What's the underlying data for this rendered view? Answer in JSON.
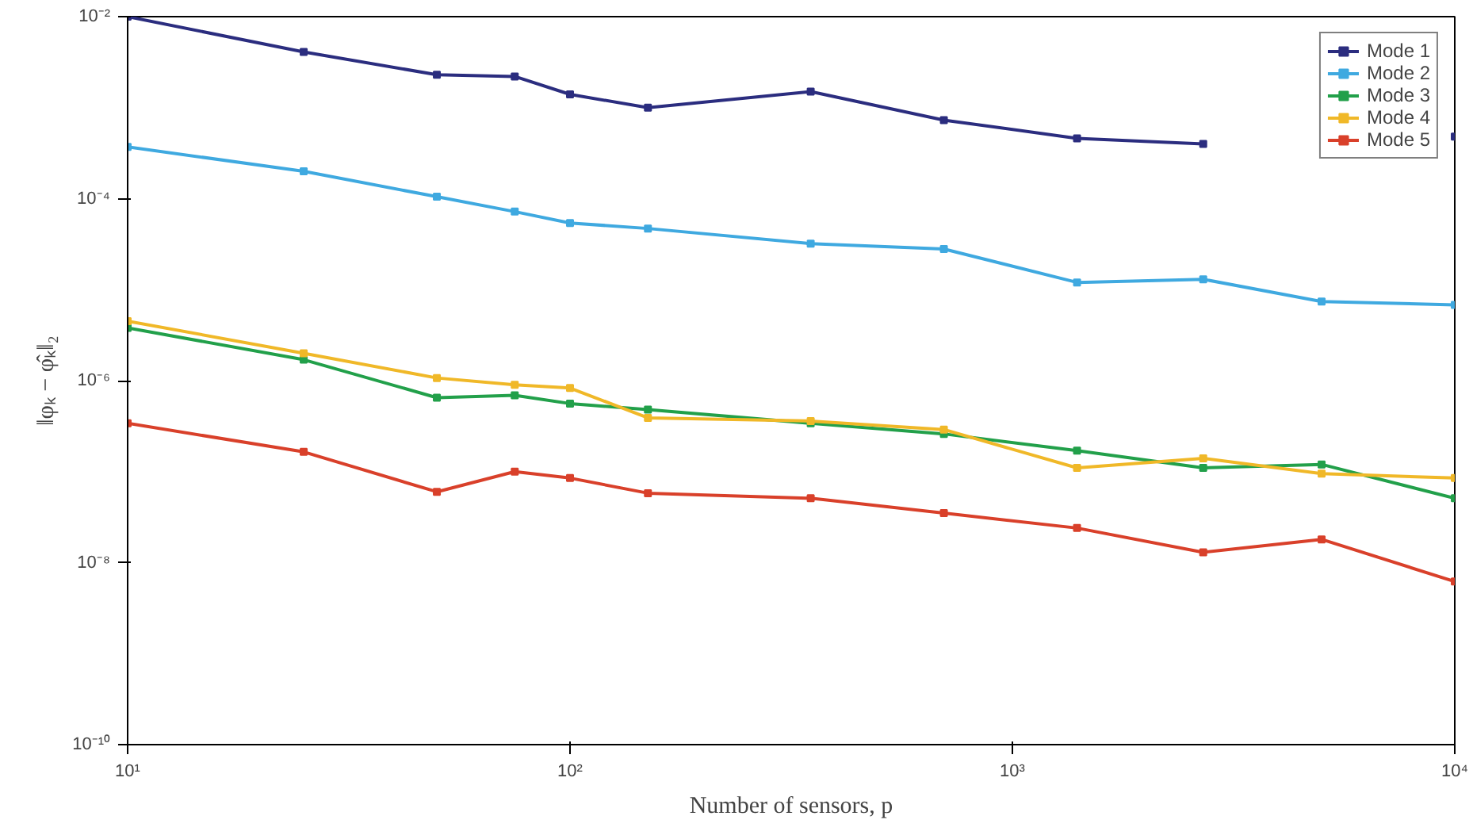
{
  "chart_data": {
    "type": "line",
    "xlabel": "Number of sensors, p",
    "ylabel": "‖φₖ − φ̂ₖ‖₂",
    "x": [
      10,
      25,
      50,
      75,
      100,
      150,
      350,
      700,
      1400,
      2700,
      5000,
      10000
    ],
    "series": [
      {
        "name": "Mode 1",
        "color": "#2b2d7f",
        "values": [
          0.01,
          0.0041,
          0.0023,
          0.0022,
          0.0014,
          0.001,
          0.0015,
          0.00073,
          0.00046,
          0.0004,
          null,
          0.00048
        ]
      },
      {
        "name": "Mode 2",
        "color": "#3fa9e0",
        "values": [
          0.00037,
          0.0002,
          0.000105,
          7.2e-05,
          5.4e-05,
          4.7e-05,
          3.2e-05,
          2.8e-05,
          1.2e-05,
          1.3e-05,
          7.4e-06,
          6.8e-06
        ]
      },
      {
        "name": "Mode 3",
        "color": "#22a04a",
        "values": [
          3.8e-06,
          1.7e-06,
          6.5e-07,
          6.9e-07,
          5.6e-07,
          4.8e-07,
          3.4e-07,
          2.6e-07,
          1.7e-07,
          1.1e-07,
          1.2e-07,
          5.1e-08
        ]
      },
      {
        "name": "Mode 4",
        "color": "#f0b828",
        "values": [
          4.5e-06,
          2e-06,
          1.07e-06,
          9e-07,
          8.3e-07,
          3.9e-07,
          3.6e-07,
          2.9e-07,
          1.1e-07,
          1.4e-07,
          9.5e-08,
          8.5e-08
        ]
      },
      {
        "name": "Mode 5",
        "color": "#d9402a",
        "values": [
          3.4e-07,
          1.65e-07,
          6e-08,
          1e-07,
          8.5e-08,
          5.8e-08,
          5.1e-08,
          3.5e-08,
          2.4e-08,
          1.3e-08,
          1.8e-08,
          6.2e-09
        ]
      }
    ],
    "log": "xy",
    "xlim": [
      10,
      10000
    ],
    "ylim": [
      1e-10,
      0.01
    ],
    "xticks": [
      {
        "value": 10,
        "label": "10¹"
      },
      {
        "value": 100,
        "label": "10²"
      },
      {
        "value": 1000,
        "label": "10³"
      },
      {
        "value": 10000,
        "label": "10⁴"
      }
    ],
    "yticks": [
      {
        "value": 1e-10,
        "label": "10⁻¹⁰"
      },
      {
        "value": 1e-08,
        "label": "10⁻⁸"
      },
      {
        "value": 1e-06,
        "label": "10⁻⁶"
      },
      {
        "value": 0.0001,
        "label": "10⁻⁴"
      },
      {
        "value": 0.01,
        "label": "10⁻²"
      }
    ],
    "grid": false,
    "legend": "top right",
    "marker": "square",
    "line_style": "solid"
  }
}
